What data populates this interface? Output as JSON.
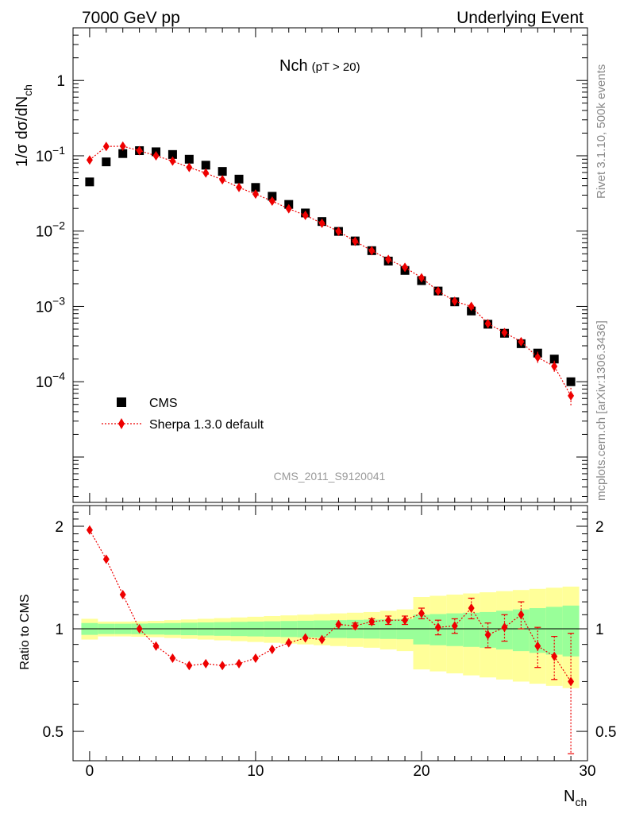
{
  "header": {
    "left": "7000 GeV pp",
    "right": "Underlying Event"
  },
  "plot_title": {
    "main": "Nch",
    "sub": "(pT > 20)"
  },
  "axes": {
    "y_main_label": "1/σ dσ/dN",
    "y_main_label_sub": "ch",
    "y_ratio_label": "Ratio to CMS",
    "x_label": "N",
    "x_label_sub": "ch",
    "x_ticks": [
      "0",
      "10",
      "20",
      "30"
    ],
    "y_main_ticks": [
      {
        "base": "1",
        "exp": ""
      },
      {
        "base": "10",
        "exp": "−1"
      },
      {
        "base": "10",
        "exp": "−2"
      },
      {
        "base": "10",
        "exp": "−3"
      },
      {
        "base": "10",
        "exp": "−4"
      }
    ],
    "y_ratio_ticks": [
      "2",
      "1",
      "0.5"
    ]
  },
  "analysis_tag": "CMS_2011_S9120041",
  "side_text": {
    "upper": "Rivet 3.1.10,  500k events",
    "lower": "mcplots.cern.ch [arXiv:1306.3436]"
  },
  "legend": {
    "data_label": "CMS",
    "mc_label": "Sherpa 1.3.0 default"
  },
  "colors": {
    "data": "#000000",
    "mc": "#ee0000",
    "band_inner": "#99ff99",
    "band_outer": "#ffff99"
  },
  "chart_data": [
    {
      "type": "scatter",
      "title": "Nch (pT > 20)",
      "xlabel": "N_ch",
      "ylabel": "1/σ dσ/dN_ch",
      "xlim": [
        -1,
        30
      ],
      "ylim": [
        2.5e-06,
        5
      ],
      "yscale": "log",
      "series": [
        {
          "name": "CMS",
          "x": [
            0,
            1,
            2,
            3,
            4,
            5,
            6,
            7,
            8,
            9,
            10,
            11,
            12,
            13,
            14,
            15,
            16,
            17,
            18,
            19,
            20,
            21,
            22,
            23,
            24,
            25,
            26,
            27,
            28,
            29
          ],
          "values": [
            0.045,
            0.083,
            0.107,
            0.117,
            0.113,
            0.104,
            0.09,
            0.075,
            0.062,
            0.049,
            0.038,
            0.029,
            0.0226,
            0.0174,
            0.0134,
            0.0099,
            0.0074,
            0.0055,
            0.004,
            0.003,
            0.0022,
            0.0016,
            0.00115,
            0.00087,
            0.00058,
            0.00044,
            0.00032,
            0.00024,
            0.0002,
            0.0001
          ]
        },
        {
          "name": "Sherpa 1.3.0 default",
          "x": [
            0,
            1,
            2,
            3,
            4,
            5,
            6,
            7,
            8,
            9,
            10,
            11,
            12,
            13,
            14,
            15,
            16,
            17,
            18,
            19,
            20,
            21,
            22,
            23,
            24,
            25,
            26,
            27,
            28,
            29
          ],
          "values": [
            0.088,
            0.133,
            0.134,
            0.117,
            0.1,
            0.085,
            0.07,
            0.059,
            0.048,
            0.038,
            0.031,
            0.025,
            0.0198,
            0.0162,
            0.0127,
            0.0099,
            0.0073,
            0.0055,
            0.0042,
            0.0033,
            0.0024,
            0.0016,
            0.00117,
            0.001,
            0.00059,
            0.00045,
            0.00034,
            0.00021,
            0.00016,
            6.5e-05
          ],
          "err": [
            0,
            0,
            0,
            0,
            0,
            0,
            0,
            0,
            0,
            0,
            0,
            0,
            0,
            0,
            0,
            0,
            0,
            0,
            0,
            0,
            0.0001,
            7e-05,
            6e-05,
            6e-05,
            5e-05,
            4e-05,
            4e-05,
            4e-05,
            3e-05,
            1.8e-05
          ]
        }
      ]
    },
    {
      "type": "scatter",
      "xlabel": "N_ch",
      "ylabel": "Ratio to CMS",
      "xlim": [
        -1,
        30
      ],
      "ylim": [
        0.41,
        2.3
      ],
      "yscale": "log",
      "reference_line": 1,
      "series": [
        {
          "name": "Sherpa 1.3.0 default",
          "x": [
            0,
            1,
            2,
            3,
            4,
            5,
            6,
            7,
            8,
            9,
            10,
            11,
            12,
            13,
            14,
            15,
            16,
            17,
            18,
            19,
            20,
            21,
            22,
            23,
            24,
            25,
            26,
            27,
            28,
            29
          ],
          "values": [
            1.95,
            1.6,
            1.26,
            1.0,
            0.89,
            0.82,
            0.78,
            0.79,
            0.78,
            0.79,
            0.82,
            0.87,
            0.91,
            0.94,
            0.93,
            1.03,
            1.02,
            1.05,
            1.06,
            1.06,
            1.11,
            1.01,
            1.02,
            1.15,
            0.96,
            1.01,
            1.1,
            0.89,
            0.83,
            0.7
          ],
          "err": [
            0.01,
            0.01,
            0.01,
            0.01,
            0.01,
            0.01,
            0.01,
            0.01,
            0.01,
            0.01,
            0.01,
            0.01,
            0.01,
            0.01,
            0.01,
            0.01,
            0.02,
            0.02,
            0.03,
            0.03,
            0.04,
            0.05,
            0.05,
            0.08,
            0.08,
            0.09,
            0.1,
            0.12,
            0.12,
            0.27
          ]
        }
      ],
      "bands": {
        "x_edges": [
          -0.5,
          0.5,
          1.5,
          2.5,
          3.5,
          4.5,
          5.5,
          6.5,
          7.5,
          8.5,
          9.5,
          10.5,
          11.5,
          12.5,
          13.5,
          14.5,
          15.5,
          16.5,
          17.5,
          18.5,
          19.5,
          20.5,
          21.5,
          22.5,
          23.5,
          24.5,
          25.5,
          26.5,
          27.5,
          28.5,
          29.5
        ],
        "inner_half_width": [
          0.04,
          0.035,
          0.035,
          0.036,
          0.038,
          0.04,
          0.042,
          0.044,
          0.046,
          0.048,
          0.05,
          0.052,
          0.054,
          0.056,
          0.058,
          0.06,
          0.062,
          0.064,
          0.066,
          0.068,
          0.1,
          0.105,
          0.11,
          0.115,
          0.12,
          0.13,
          0.14,
          0.15,
          0.16,
          0.17
        ],
        "outer_half_width": [
          0.07,
          0.05,
          0.05,
          0.052,
          0.055,
          0.06,
          0.065,
          0.07,
          0.075,
          0.08,
          0.085,
          0.09,
          0.095,
          0.1,
          0.105,
          0.11,
          0.115,
          0.12,
          0.13,
          0.14,
          0.24,
          0.25,
          0.26,
          0.27,
          0.28,
          0.29,
          0.3,
          0.31,
          0.32,
          0.33
        ]
      }
    }
  ]
}
